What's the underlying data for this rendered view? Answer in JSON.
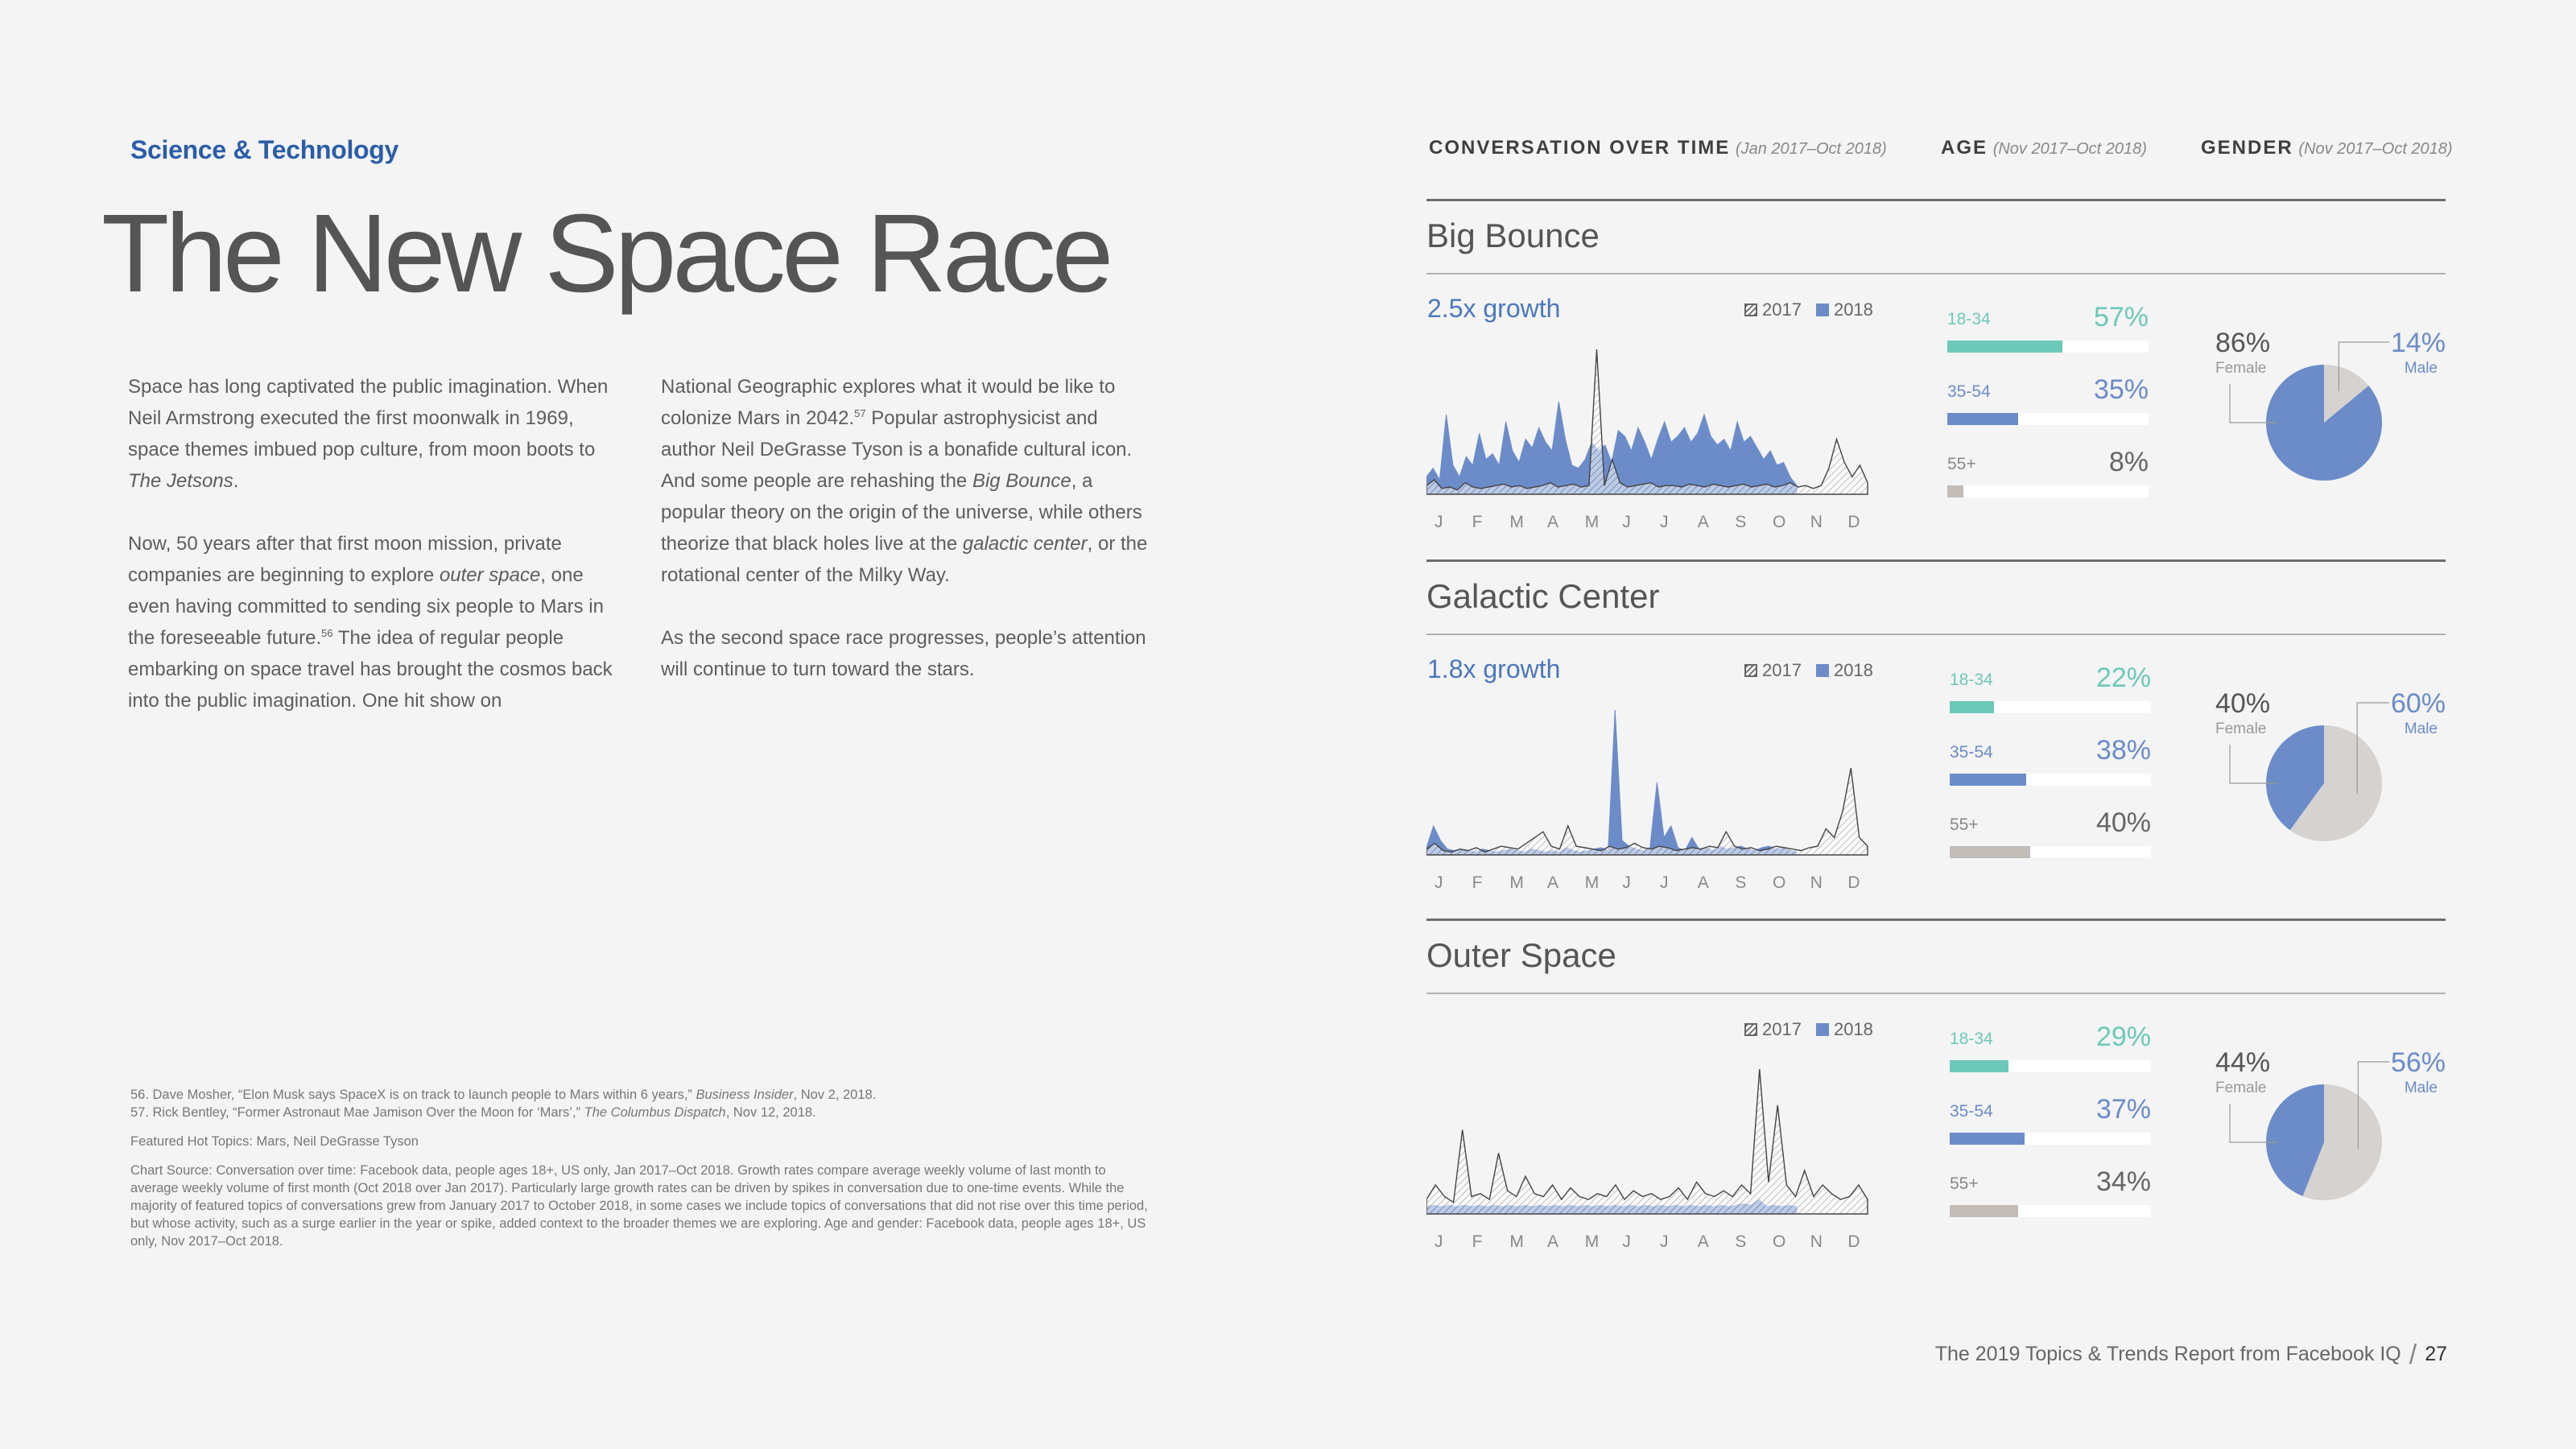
{
  "category": "Science & Technology",
  "title": "The New Space Race",
  "col1": {
    "p1": [
      "Space has long captivated the public imagination. When Neil Armstrong executed the first moonwalk in 1969, space themes imbued pop culture, from moon boots to ",
      "The Jetsons",
      "."
    ],
    "p2": [
      "Now, 50 years after that first moon mission, private companies are beginning to explore ",
      "outer space",
      ", one even having committed to sending six people to Mars in the foreseeable future.",
      "56",
      " The idea of regular people embarking on space travel has brought the cosmos back into the public imagination. One hit show on"
    ]
  },
  "col2": {
    "p1": [
      "National Geographic explores what it would be like to colonize Mars in 2042.",
      "57",
      " Popular astrophysicist and author Neil DeGrasse Tyson is a bonafide cultural icon. And some people are rehashing the ",
      "Big Bounce",
      ", a popular theory on the origin of the universe, while others theorize that black holes live at the ",
      "galactic center",
      ", or the rotational center of the Milky Way."
    ],
    "p2": "As the second space race progresses, people’s attention will continue to turn toward the stars."
  },
  "footnotes": {
    "fn56": [
      "56. Dave Mosher, “Elon Musk says SpaceX is on track to launch people to Mars within 6 years,” ",
      "Business Insider",
      ", Nov 2, 2018."
    ],
    "fn57": [
      "57. Rick Bentley, “Former Astronaut Mae Jamison Over the Moon for ‘Mars’,” ",
      "The Columbus Dispatch",
      ", Nov 12, 2018."
    ],
    "featured": "Featured Hot Topics: Mars, Neil DeGrasse Tyson",
    "source": "Chart Source: Conversation over time: Facebook data, people ages 18+, US only, Jan 2017–Oct 2018. Growth rates compare average weekly volume of last month to average weekly volume of first month (Oct 2018 over Jan 2017). Particularly large growth rates can be driven by spikes in conversation due to one-time events. While the majority of featured topics of conversations grew from January 2017 to October 2018, in some cases we include topics of conversations that did not rise over this time period, but whose activity, such as a surge earlier in the year or spike, added context to the broader themes we are exploring. Age and gender: Facebook data, people ages 18+, US only, Nov 2017–Oct 2018."
  },
  "header": {
    "conv": "CONVERSATION OVER TIME",
    "conv_range": "(Jan 2017–Oct 2018)",
    "age": "AGE",
    "age_range": "(Nov 2017–Oct 2018)",
    "gender": "GENDER",
    "gender_range": "(Nov 2017–Oct 2018)"
  },
  "legend": {
    "y2017": "2017",
    "y2018": "2018"
  },
  "months": [
    "J",
    "F",
    "M",
    "A",
    "M",
    "J",
    "J",
    "A",
    "S",
    "O",
    "N",
    "D"
  ],
  "colors": {
    "blue": "#6b8cc9",
    "teal": "#6cc9b8",
    "grey": "#c2bdb8",
    "pie_grey": "#d5d2cf",
    "link": "#4a78bd"
  },
  "sections": [
    {
      "name": "Big Bounce",
      "growth": "2.5x growth",
      "age": [
        {
          "label": "18-34",
          "value": "57%",
          "frac": 0.57,
          "color": "#6cc9b8"
        },
        {
          "label": "35-54",
          "value": "35%",
          "frac": 0.35,
          "color": "#6b8cc9"
        },
        {
          "label": "55+",
          "value": "8%",
          "frac": 0.08,
          "color": "#c2bdb8"
        }
      ],
      "gender": {
        "female": "86%",
        "male": "14%",
        "female_frac": 0.86,
        "female_label": "Female",
        "male_label": "Male"
      }
    },
    {
      "name": "Galactic Center",
      "growth": "1.8x growth",
      "age": [
        {
          "label": "18-34",
          "value": "22%",
          "frac": 0.22,
          "color": "#6cc9b8"
        },
        {
          "label": "35-54",
          "value": "38%",
          "frac": 0.38,
          "color": "#6b8cc9"
        },
        {
          "label": "55+",
          "value": "40%",
          "frac": 0.4,
          "color": "#c2bdb8"
        }
      ],
      "gender": {
        "female": "40%",
        "male": "60%",
        "female_frac": 0.4,
        "female_label": "Female",
        "male_label": "Male"
      }
    },
    {
      "name": "Outer Space",
      "growth": "",
      "age": [
        {
          "label": "18-34",
          "value": "29%",
          "frac": 0.29,
          "color": "#6cc9b8"
        },
        {
          "label": "35-54",
          "value": "37%",
          "frac": 0.37,
          "color": "#6b8cc9"
        },
        {
          "label": "55+",
          "value": "34%",
          "frac": 0.34,
          "color": "#c2bdb8"
        }
      ],
      "gender": {
        "female": "44%",
        "male": "56%",
        "female_frac": 0.44,
        "female_label": "Female",
        "male_label": "Male"
      }
    }
  ],
  "chart_data": [
    {
      "type": "area",
      "title": "Big Bounce",
      "ylim": [
        0,
        1
      ],
      "series": [
        {
          "name": "2018",
          "values": [
            0.12,
            0.18,
            0.1,
            0.55,
            0.2,
            0.12,
            0.26,
            0.2,
            0.42,
            0.24,
            0.28,
            0.2,
            0.5,
            0.3,
            0.22,
            0.38,
            0.32,
            0.46,
            0.36,
            0.3,
            0.64,
            0.38,
            0.2,
            0.18,
            0.24,
            0.36,
            0.3,
            0.34,
            0.22,
            0.44,
            0.4,
            0.3,
            0.46,
            0.36,
            0.24,
            0.38,
            0.5,
            0.36,
            0.4,
            0.46,
            0.36,
            0.42,
            0.55,
            0.4,
            0.34,
            0.38,
            0.3,
            0.5,
            0.36,
            0.4,
            0.32,
            0.24,
            0.3,
            0.2,
            0.22,
            0.12,
            0.06
          ]
        },
        {
          "name": "2017",
          "values": [
            0.06,
            0.1,
            0.04,
            0.05,
            0.03,
            0.08,
            0.05,
            0.04,
            0.05,
            0.06,
            0.07,
            0.05,
            0.06,
            0.04,
            0.05,
            0.06,
            0.08,
            0.05,
            0.06,
            0.07,
            0.05,
            0.06,
            1.0,
            0.06,
            0.24,
            0.08,
            0.05,
            0.06,
            0.07,
            0.08,
            0.05,
            0.06,
            0.06,
            0.05,
            0.07,
            0.06,
            0.05,
            0.07,
            0.06,
            0.05,
            0.06,
            0.07,
            0.05,
            0.06,
            0.07,
            0.05,
            0.06,
            0.08,
            0.05,
            0.06,
            0.04,
            0.06,
            0.18,
            0.38,
            0.22,
            0.12,
            0.2,
            0.08
          ]
        }
      ]
    },
    {
      "type": "area",
      "title": "Galactic Center",
      "ylim": [
        0,
        1
      ],
      "series": [
        {
          "name": "2018",
          "values": [
            0.05,
            0.2,
            0.1,
            0.04,
            0.03,
            0.04,
            0.03,
            0.02,
            0.04,
            0.03,
            0.02,
            0.03,
            0.04,
            0.03,
            0.02,
            0.04,
            0.03,
            0.02,
            0.03,
            0.02,
            0.05,
            0.03,
            0.02,
            0.03,
            0.04,
            0.05,
            0.03,
            1.0,
            0.1,
            0.06,
            0.04,
            0.03,
            0.05,
            0.5,
            0.12,
            0.2,
            0.05,
            0.03,
            0.12,
            0.04,
            0.05,
            0.03,
            0.06,
            0.04,
            0.05,
            0.06,
            0.04,
            0.03,
            0.05,
            0.06,
            0.04,
            0.05,
            0.03,
            0.02
          ]
        },
        {
          "name": "2017",
          "values": [
            0.04,
            0.08,
            0.03,
            0.02,
            0.04,
            0.03,
            0.05,
            0.02,
            0.04,
            0.06,
            0.05,
            0.04,
            0.08,
            0.12,
            0.16,
            0.06,
            0.04,
            0.2,
            0.06,
            0.05,
            0.04,
            0.03,
            0.06,
            0.04,
            0.05,
            0.08,
            0.05,
            0.04,
            0.06,
            0.05,
            0.03,
            0.04,
            0.05,
            0.04,
            0.06,
            0.05,
            0.16,
            0.06,
            0.04,
            0.05,
            0.03,
            0.04,
            0.06,
            0.05,
            0.04,
            0.03,
            0.05,
            0.06,
            0.18,
            0.12,
            0.3,
            0.6,
            0.12,
            0.06
          ]
        }
      ]
    },
    {
      "type": "area",
      "title": "Outer Space",
      "ylim": [
        0,
        1
      ],
      "series": [
        {
          "name": "2018",
          "values": [
            0.05,
            0.06,
            0.05,
            0.06,
            0.05,
            0.06,
            0.05,
            0.06,
            0.05,
            0.06,
            0.05,
            0.06,
            0.05,
            0.06,
            0.05,
            0.06,
            0.05,
            0.06,
            0.05,
            0.06,
            0.05,
            0.06,
            0.05,
            0.06,
            0.05,
            0.06,
            0.05,
            0.06,
            0.05,
            0.06,
            0.05,
            0.06,
            0.05,
            0.06,
            0.05,
            0.06,
            0.05,
            0.06,
            0.05,
            0.06,
            0.05,
            0.06,
            0.07,
            0.06,
            0.1,
            0.05,
            0.06,
            0.05,
            0.06,
            0.05
          ]
        },
        {
          "name": "2017",
          "values": [
            0.1,
            0.2,
            0.12,
            0.08,
            0.58,
            0.12,
            0.14,
            0.1,
            0.42,
            0.16,
            0.12,
            0.26,
            0.14,
            0.12,
            0.2,
            0.1,
            0.18,
            0.12,
            0.1,
            0.14,
            0.12,
            0.2,
            0.1,
            0.16,
            0.12,
            0.14,
            0.1,
            0.12,
            0.18,
            0.1,
            0.22,
            0.14,
            0.12,
            0.16,
            0.12,
            0.2,
            0.14,
            1.0,
            0.22,
            0.75,
            0.2,
            0.12,
            0.3,
            0.12,
            0.2,
            0.14,
            0.1,
            0.12,
            0.2,
            0.1
          ]
        }
      ]
    }
  ],
  "footer": {
    "report": "The 2019 Topics & Trends Report from Facebook IQ",
    "page": "27"
  }
}
